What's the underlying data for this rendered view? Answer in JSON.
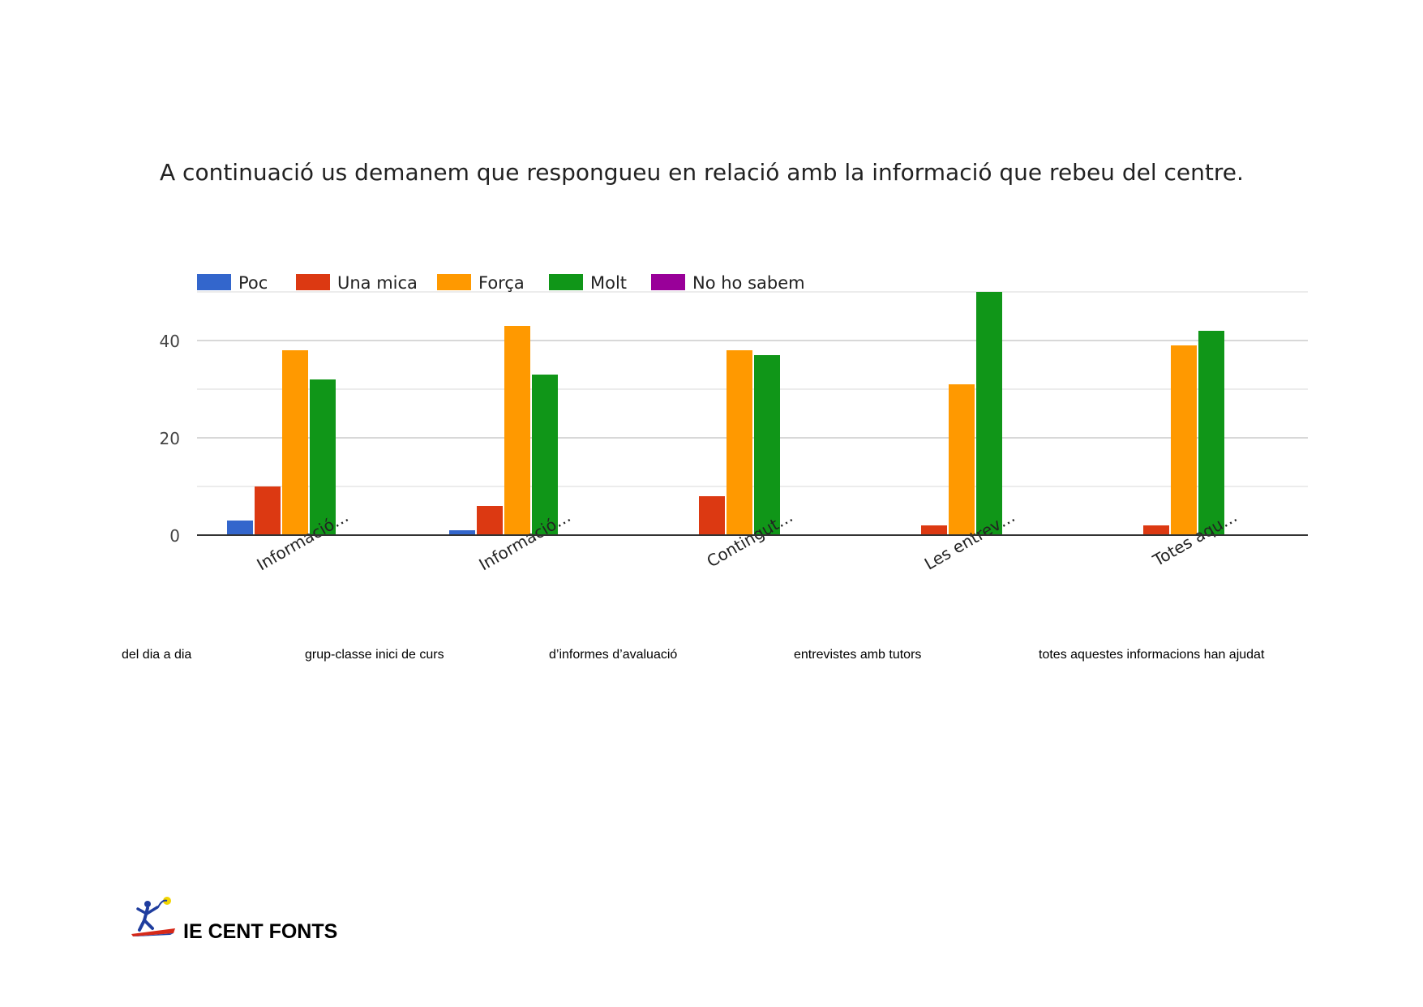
{
  "chart_data": {
    "type": "bar",
    "title": "A continuació us demanem que respongueu en relació amb la informació que rebeu del centre.",
    "categories": [
      "Informació…",
      "Informació…",
      "Contingut…",
      "Les entrev…",
      "Totes aqu…"
    ],
    "series": [
      {
        "name": "Poc",
        "color": "#3366cc",
        "values": [
          3,
          1,
          0,
          0,
          0
        ]
      },
      {
        "name": "Una mica",
        "color": "#dc3912",
        "values": [
          10,
          6,
          8,
          2,
          2
        ]
      },
      {
        "name": "Força",
        "color": "#ff9900",
        "values": [
          38,
          43,
          38,
          31,
          39
        ]
      },
      {
        "name": "Molt",
        "color": "#109618",
        "values": [
          32,
          33,
          37,
          50,
          42
        ]
      },
      {
        "name": "No ho sabem",
        "color": "#990099",
        "values": [
          0,
          0,
          0,
          0,
          0
        ]
      }
    ],
    "y_ticks": [
      "0",
      "20",
      "40"
    ],
    "ylim": [
      0,
      50
    ],
    "grid": true,
    "legend": "top-left",
    "xlabel": "",
    "ylabel": ""
  },
  "subcaptions": [
    "del dia a dia",
    "grup-classe inici de curs",
    "d’informes d’avaluació",
    "entrevistes amb tutors",
    "totes aquestes informacions han ajudat"
  ],
  "footer": {
    "org_name": "IE CENT FONTS"
  }
}
